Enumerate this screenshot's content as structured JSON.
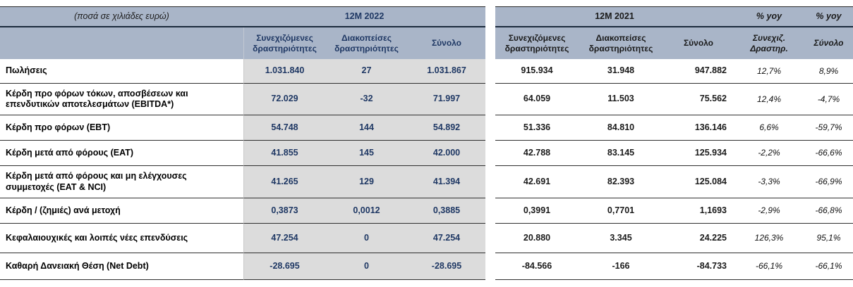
{
  "table": {
    "units_note": "(ποσά σε χιλιάδες ευρώ)",
    "groups": {
      "y2022": "12M 2022",
      "y2021": "12M 2021",
      "yoy_continuing": "% yoy",
      "yoy_total": "% yoy"
    },
    "subheaders": {
      "continuing_2022": "Συνεχιζόμενες δραστηριότητες",
      "discontinued_2022": "Διακοπείσες δραστηριότητες",
      "total_2022": "Σύνολο",
      "continuing_2021": "Συνεχιζόμενες δραστηριότητες",
      "discontinued_2021": "Διακοπείσες δραστηριότητες",
      "total_2021": "Σύνολο",
      "yoy_continuing": "Συνεχιζ. Δραστηρ.",
      "yoy_total": "Σύνολο"
    },
    "rows": [
      {
        "label": "Πωλήσεις",
        "values_2022": [
          "1.031.840",
          "27",
          "1.031.867"
        ],
        "values_2021": [
          "915.934",
          "31.948",
          "947.882"
        ],
        "yoy": [
          "12,7%",
          "8,9%"
        ]
      },
      {
        "label": "Κέρδη προ φόρων τόκων, αποσβέσεων και επενδυτικών αποτελεσμάτων (EBITDA*)",
        "values_2022": [
          "72.029",
          "-32",
          "71.997"
        ],
        "values_2021": [
          "64.059",
          "11.503",
          "75.562"
        ],
        "yoy": [
          "12,4%",
          "-4,7%"
        ]
      },
      {
        "label": "Κέρδη προ φόρων (EBT)",
        "values_2022": [
          "54.748",
          "144",
          "54.892"
        ],
        "values_2021": [
          "51.336",
          "84.810",
          "136.146"
        ],
        "yoy": [
          "6,6%",
          "-59,7%"
        ]
      },
      {
        "label": "Κέρδη μετά από φόρους (EAT)",
        "values_2022": [
          "41.855",
          "145",
          "42.000"
        ],
        "values_2021": [
          "42.788",
          "83.145",
          "125.934"
        ],
        "yoy": [
          "-2,2%",
          "-66,6%"
        ]
      },
      {
        "label": "Κέρδη μετά από φόρους και μη ελέγχουσες συμμετοχές (EAT & NCI)",
        "values_2022": [
          "41.265",
          "129",
          "41.394"
        ],
        "values_2021": [
          "42.691",
          "82.393",
          "125.084"
        ],
        "yoy": [
          "-3,3%",
          "-66,9%"
        ]
      },
      {
        "label": "Κέρδη / (ζημιές) ανά μετοχή",
        "values_2022": [
          "0,3873",
          "0,0012",
          "0,3885"
        ],
        "values_2021": [
          "0,3991",
          "0,7701",
          "1,1693"
        ],
        "yoy": [
          "-2,9%",
          "-66,8%"
        ]
      },
      {
        "label": "Κεφαλαιουχικές και λοιπές νέες επενδύσεις",
        "values_2022": [
          "47.254",
          "0",
          "47.254"
        ],
        "values_2021": [
          "20.880",
          "3.345",
          "24.225"
        ],
        "yoy": [
          "126,3%",
          "95,1%"
        ]
      },
      {
        "label": "Καθαρή Δανειακή Θέση (Net Debt)",
        "values_2022": [
          "-28.695",
          "0",
          "-28.695"
        ],
        "values_2021": [
          "-84.566",
          "-166",
          "-84.733"
        ],
        "yoy": [
          "-66,1%",
          "-66,1%"
        ]
      }
    ]
  },
  "colors": {
    "header_bg": "#a9b5c8",
    "col_2022_bg": "#dcdcdc",
    "accent_navy": "#1f3864"
  }
}
